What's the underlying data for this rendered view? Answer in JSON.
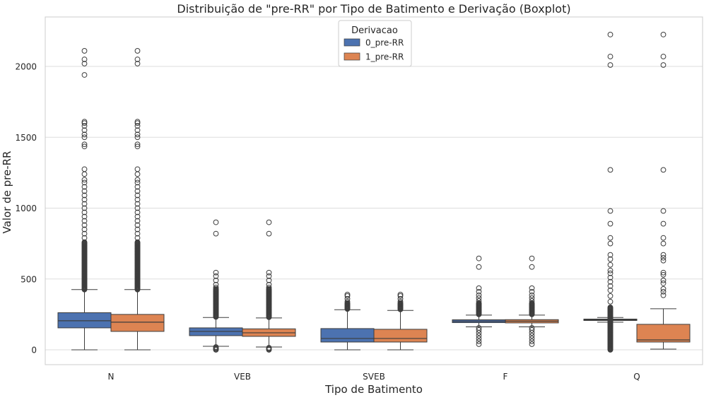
{
  "chart_data": {
    "type": "boxplot",
    "title": "Distribuição de \"pre-RR\" por Tipo de Batimento e Derivação (Boxplot)",
    "xlabel": "Tipo de Batimento",
    "ylabel": "Valor de pre-RR",
    "categories": [
      "N",
      "VEB",
      "SVEB",
      "F",
      "Q"
    ],
    "ylim": [
      -100,
      2350
    ],
    "yticks": [
      0,
      500,
      1000,
      1500,
      2000
    ],
    "grid": true,
    "legend": {
      "title": "Derivacao",
      "position": "top-center"
    },
    "series": [
      {
        "name": "0_pre-RR",
        "color": "#4c72b0",
        "boxes": [
          {
            "category": "N",
            "whisker_low": 0,
            "q1": 155,
            "median": 205,
            "q3": 262,
            "whisker_high": 425,
            "outliers_dense": [
              425,
              760
            ],
            "outliers": [
              790,
              820,
              850,
              880,
              910,
              940,
              970,
              1000,
              1030,
              1060,
              1090,
              1120,
              1150,
              1180,
              1200,
              1240,
              1275,
              1435,
              1450,
              1500,
              1520,
              1550,
              1580,
              1600,
              1610,
              1940,
              2020,
              2050,
              2110
            ]
          },
          {
            "category": "VEB",
            "whisker_low": 25,
            "q1": 100,
            "median": 130,
            "q3": 155,
            "whisker_high": 228,
            "outliers_dense": [
              232,
              430
            ],
            "outliers": [
              0,
              5,
              10,
              15,
              20,
              440,
              460,
              490,
              520,
              545,
              820,
              900
            ]
          },
          {
            "category": "SVEB",
            "whisker_low": 0,
            "q1": 55,
            "median": 80,
            "q3": 150,
            "whisker_high": 283,
            "outliers_dense": [
              288,
              330
            ],
            "outliers": [
              340,
              360,
              380,
              390
            ]
          },
          {
            "category": "F",
            "whisker_low": 162,
            "q1": 192,
            "median": 202,
            "q3": 212,
            "whisker_high": 245,
            "outliers_dense": [
              250,
              330
            ],
            "outliers": [
              40,
              60,
              80,
              100,
              120,
              140,
              155,
              345,
              365,
              385,
              410,
              435,
              585,
              645
            ]
          },
          {
            "category": "Q",
            "whisker_low": 195,
            "q1": 207,
            "median": 212,
            "q3": 217,
            "whisker_high": 228,
            "outliers_dense": [
              0,
              300
            ],
            "outliers": [
              340,
              380,
              420,
              450,
              480,
              510,
              540,
              560,
              600,
              640,
              670,
              750,
              790,
              890,
              980,
              1270,
              2010,
              2070,
              2225
            ]
          }
        ]
      },
      {
        "name": "1_pre-RR",
        "color": "#dd8452",
        "boxes": [
          {
            "category": "N",
            "whisker_low": 0,
            "q1": 130,
            "median": 195,
            "q3": 250,
            "whisker_high": 425,
            "outliers_dense": [
              425,
              760
            ],
            "outliers": [
              790,
              820,
              850,
              880,
              910,
              940,
              970,
              1000,
              1030,
              1060,
              1090,
              1120,
              1150,
              1180,
              1200,
              1240,
              1275,
              1435,
              1450,
              1500,
              1520,
              1550,
              1580,
              1600,
              1610,
              2020,
              2050,
              2110
            ]
          },
          {
            "category": "VEB",
            "whisker_low": 20,
            "q1": 95,
            "median": 120,
            "q3": 148,
            "whisker_high": 225,
            "outliers_dense": [
              230,
              430
            ],
            "outliers": [
              0,
              5,
              10,
              15,
              440,
              460,
              490,
              520,
              545,
              820,
              900
            ]
          },
          {
            "category": "SVEB",
            "whisker_low": 0,
            "q1": 55,
            "median": 80,
            "q3": 145,
            "whisker_high": 278,
            "outliers_dense": [
              285,
              330
            ],
            "outliers": [
              340,
              360,
              380,
              390
            ]
          },
          {
            "category": "F",
            "whisker_low": 162,
            "q1": 190,
            "median": 202,
            "q3": 213,
            "whisker_high": 245,
            "outliers_dense": [
              250,
              330
            ],
            "outliers": [
              40,
              60,
              80,
              100,
              120,
              140,
              155,
              345,
              365,
              385,
              410,
              435,
              585,
              645
            ]
          },
          {
            "category": "Q",
            "whisker_low": 5,
            "q1": 55,
            "median": 70,
            "q3": 180,
            "whisker_high": 290,
            "outliers_dense": [],
            "outliers": [
              385,
              410,
              430,
              470,
              490,
              530,
              545,
              630,
              650,
              670,
              750,
              790,
              890,
              980,
              1270,
              2010,
              2070,
              2225
            ]
          }
        ]
      }
    ]
  }
}
